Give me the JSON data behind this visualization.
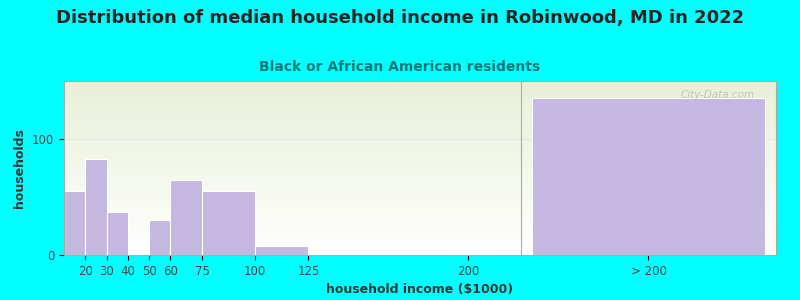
{
  "title": "Distribution of median household income in Robinwood, MD in 2022",
  "subtitle": "Black or African American residents",
  "xlabel": "household income ($1000)",
  "ylabel": "households",
  "background_color": "#00FFFF",
  "bar_color": "#c5b8e0",
  "bar_edge_color": "#ffffff",
  "bar_lefts": [
    10,
    20,
    30,
    40,
    50,
    60,
    75,
    100,
    230
  ],
  "bar_widths": [
    10,
    10,
    10,
    10,
    10,
    15,
    25,
    25,
    110
  ],
  "bar_heights": [
    55,
    83,
    37,
    0,
    30,
    65,
    55,
    8,
    135
  ],
  "x_tick_positions": [
    20,
    30,
    40,
    50,
    60,
    75,
    100,
    125,
    200,
    285
  ],
  "x_tick_labels": [
    "20",
    "30",
    "40",
    "50",
    "60",
    "75",
    "100",
    "125",
    "200",
    "> 200"
  ],
  "xlim": [
    10,
    345
  ],
  "ylim": [
    0,
    150
  ],
  "y_tick_positions": [
    0,
    100
  ],
  "title_fontsize": 13,
  "subtitle_fontsize": 10,
  "axis_label_fontsize": 9,
  "tick_fontsize": 8.5,
  "watermark_text": "City-Data.com",
  "title_color": "#222222",
  "subtitle_color": "#007777",
  "axis_label_color": "#333333",
  "tick_color": "#444444",
  "gridline_color": "#e8e8e8",
  "plot_bg_gradient_top": "#e8f0d8",
  "plot_bg_gradient_bottom": "#ffffff",
  "separator_x": 225,
  "separator_color": "#aaaaaa"
}
